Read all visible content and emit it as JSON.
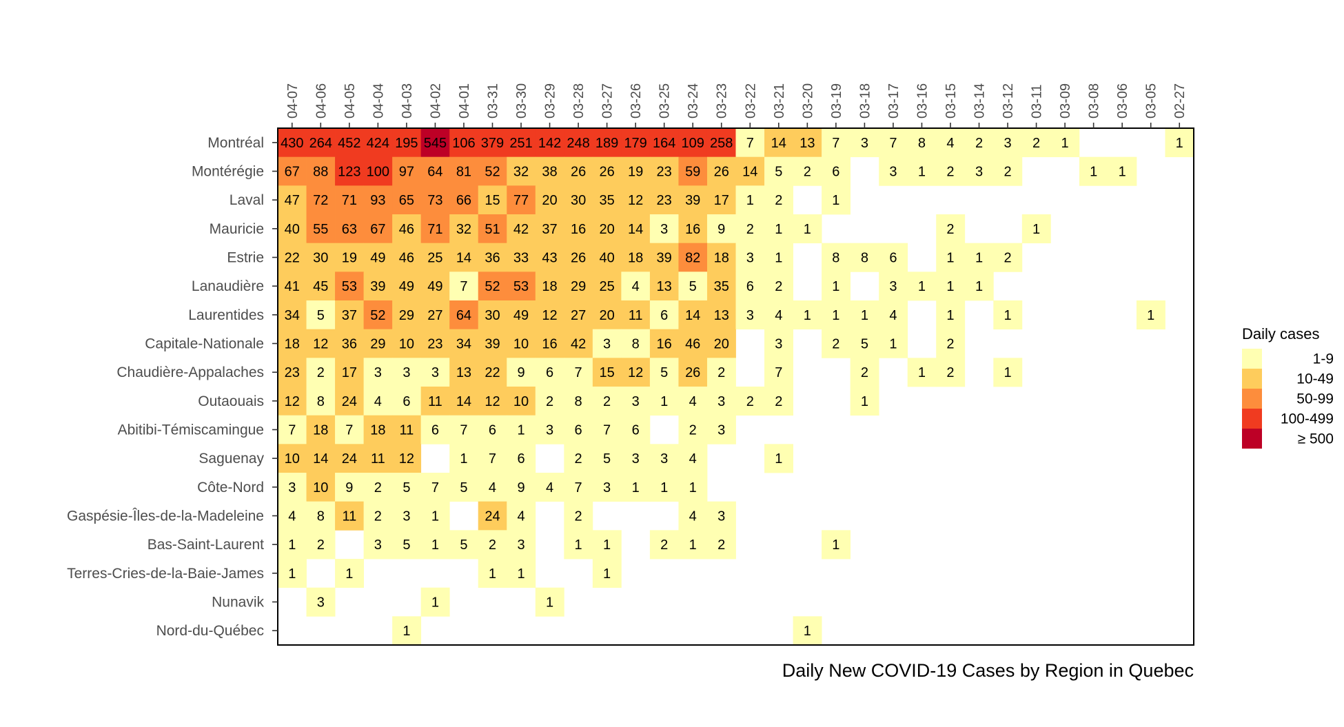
{
  "chart_data": {
    "type": "heatmap",
    "title": "Daily New COVID-19 Cases by Region in Quebec",
    "dates": [
      "04-07",
      "04-06",
      "04-05",
      "04-04",
      "04-03",
      "04-02",
      "04-01",
      "03-31",
      "03-30",
      "03-29",
      "03-28",
      "03-27",
      "03-26",
      "03-25",
      "03-24",
      "03-23",
      "03-22",
      "03-21",
      "03-20",
      "03-19",
      "03-18",
      "03-17",
      "03-16",
      "03-15",
      "03-14",
      "03-12",
      "03-11",
      "03-09",
      "03-08",
      "03-06",
      "03-05",
      "02-27"
    ],
    "regions": [
      "Montréal",
      "Montérégie",
      "Laval",
      "Mauricie",
      "Estrie",
      "Lanaudière",
      "Laurentides",
      "Capitale-Nationale",
      "Chaudière-Appalaches",
      "Outaouais",
      "Abitibi-Témiscamingue",
      "Saguenay",
      "Côte-Nord",
      "Gaspésie-Îles-de-la-Madeleine",
      "Bas-Saint-Laurent",
      "Terres-Cries-de-la-Baie-James",
      "Nunavik",
      "Nord-du-Québec"
    ],
    "values": [
      [
        430,
        264,
        452,
        424,
        195,
        545,
        106,
        379,
        251,
        142,
        248,
        189,
        179,
        164,
        109,
        258,
        7,
        14,
        13,
        7,
        3,
        7,
        8,
        4,
        2,
        3,
        2,
        1,
        null,
        null,
        null,
        1
      ],
      [
        67,
        88,
        123,
        100,
        97,
        64,
        81,
        52,
        32,
        38,
        26,
        26,
        19,
        23,
        59,
        26,
        14,
        5,
        2,
        6,
        null,
        3,
        1,
        2,
        3,
        2,
        null,
        null,
        1,
        1,
        null,
        null
      ],
      [
        47,
        72,
        71,
        93,
        65,
        73,
        66,
        15,
        77,
        20,
        30,
        35,
        12,
        23,
        39,
        17,
        1,
        2,
        null,
        1,
        null,
        null,
        null,
        null,
        null,
        null,
        null,
        null,
        null,
        null,
        null,
        null
      ],
      [
        40,
        55,
        63,
        67,
        46,
        71,
        32,
        51,
        42,
        37,
        16,
        20,
        14,
        3,
        16,
        9,
        2,
        1,
        1,
        null,
        null,
        null,
        null,
        2,
        null,
        null,
        1,
        null,
        null,
        null,
        null,
        null
      ],
      [
        22,
        30,
        19,
        49,
        46,
        25,
        14,
        36,
        33,
        43,
        26,
        40,
        18,
        39,
        82,
        18,
        3,
        1,
        null,
        8,
        8,
        6,
        null,
        1,
        1,
        2,
        null,
        null,
        null,
        null,
        null,
        null
      ],
      [
        41,
        45,
        53,
        39,
        49,
        49,
        7,
        52,
        53,
        18,
        29,
        25,
        4,
        13,
        5,
        35,
        6,
        2,
        null,
        1,
        null,
        3,
        1,
        1,
        1,
        null,
        null,
        null,
        null,
        null,
        null,
        null
      ],
      [
        34,
        5,
        37,
        52,
        29,
        27,
        64,
        30,
        49,
        12,
        27,
        20,
        11,
        6,
        14,
        13,
        3,
        4,
        1,
        1,
        1,
        4,
        null,
        1,
        null,
        1,
        null,
        null,
        null,
        null,
        1,
        null
      ],
      [
        18,
        12,
        36,
        29,
        10,
        23,
        34,
        39,
        10,
        16,
        42,
        3,
        8,
        16,
        46,
        20,
        null,
        3,
        null,
        2,
        5,
        1,
        null,
        2,
        null,
        null,
        null,
        null,
        null,
        null,
        null,
        null
      ],
      [
        23,
        2,
        17,
        3,
        3,
        3,
        13,
        22,
        9,
        6,
        7,
        15,
        12,
        5,
        26,
        2,
        null,
        7,
        null,
        null,
        2,
        null,
        1,
        2,
        null,
        1,
        null,
        null,
        null,
        null,
        null,
        null
      ],
      [
        12,
        8,
        24,
        4,
        6,
        11,
        14,
        12,
        10,
        2,
        8,
        2,
        3,
        1,
        4,
        3,
        2,
        2,
        null,
        null,
        1,
        null,
        null,
        null,
        null,
        null,
        null,
        null,
        null,
        null,
        null,
        null
      ],
      [
        7,
        18,
        7,
        18,
        11,
        6,
        7,
        6,
        1,
        3,
        6,
        7,
        6,
        null,
        2,
        3,
        null,
        null,
        null,
        null,
        null,
        null,
        null,
        null,
        null,
        null,
        null,
        null,
        null,
        null,
        null,
        null
      ],
      [
        10,
        14,
        24,
        11,
        12,
        null,
        1,
        7,
        6,
        null,
        2,
        5,
        3,
        3,
        4,
        null,
        null,
        1,
        null,
        null,
        null,
        null,
        null,
        null,
        null,
        null,
        null,
        null,
        null,
        null,
        null,
        null
      ],
      [
        3,
        10,
        9,
        2,
        5,
        7,
        5,
        4,
        9,
        4,
        7,
        3,
        1,
        1,
        1,
        null,
        null,
        null,
        null,
        null,
        null,
        null,
        null,
        null,
        null,
        null,
        null,
        null,
        null,
        null,
        null,
        null
      ],
      [
        4,
        8,
        11,
        2,
        3,
        1,
        null,
        24,
        4,
        null,
        2,
        null,
        null,
        null,
        4,
        3,
        null,
        null,
        null,
        null,
        null,
        null,
        null,
        null,
        null,
        null,
        null,
        null,
        null,
        null,
        null,
        null
      ],
      [
        1,
        2,
        null,
        3,
        5,
        1,
        5,
        2,
        3,
        null,
        1,
        1,
        null,
        2,
        1,
        2,
        null,
        null,
        null,
        1,
        null,
        null,
        null,
        null,
        null,
        null,
        null,
        null,
        null,
        null,
        null,
        null
      ],
      [
        1,
        null,
        1,
        null,
        null,
        null,
        null,
        1,
        1,
        null,
        null,
        1,
        null,
        null,
        null,
        null,
        null,
        null,
        null,
        null,
        null,
        null,
        null,
        null,
        null,
        null,
        null,
        null,
        null,
        null,
        null,
        null
      ],
      [
        null,
        3,
        null,
        null,
        null,
        1,
        null,
        null,
        null,
        1,
        null,
        null,
        null,
        null,
        null,
        null,
        null,
        null,
        null,
        null,
        null,
        null,
        null,
        null,
        null,
        null,
        null,
        null,
        null,
        null,
        null,
        null
      ],
      [
        null,
        null,
        null,
        null,
        1,
        null,
        null,
        null,
        null,
        null,
        null,
        null,
        null,
        null,
        null,
        null,
        null,
        null,
        1,
        null,
        null,
        null,
        null,
        null,
        null,
        null,
        null,
        null,
        null,
        null,
        null,
        null
      ]
    ],
    "legend": {
      "title": "Daily cases",
      "placement": "right",
      "bins": [
        {
          "label": "1-9",
          "min": 1,
          "max": 9,
          "color": "#FFFFB2"
        },
        {
          "label": "10-49",
          "min": 10,
          "max": 49,
          "color": "#FECC5C"
        },
        {
          "label": "50-99",
          "min": 50,
          "max": 99,
          "color": "#FD8D3C"
        },
        {
          "label": "100-499",
          "min": 100,
          "max": 499,
          "color": "#F03B20"
        },
        {
          "label": "≥ 500",
          "min": 500,
          "max": null,
          "color": "#BD0026"
        }
      ]
    },
    "x_axis_position": "top",
    "grid": false
  }
}
